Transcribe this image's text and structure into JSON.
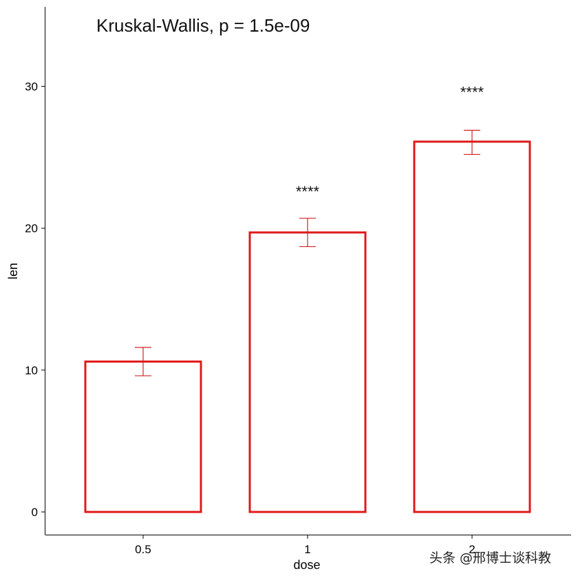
{
  "chart_data": {
    "type": "bar",
    "categories": [
      "0.5",
      "1",
      "2"
    ],
    "values": [
      10.6,
      19.7,
      26.1
    ],
    "error_low": [
      9.6,
      18.7,
      25.2
    ],
    "error_high": [
      11.6,
      20.7,
      26.9
    ],
    "significance": [
      "",
      "****",
      "****"
    ],
    "significance_y": [
      null,
      22.6,
      29.6
    ],
    "annotation": "Kruskal-Wallis, p = 1.5e-09",
    "xlabel": "dose",
    "ylabel": "len",
    "yticks": [
      0,
      10,
      20,
      30
    ],
    "ylim": [
      -1.6,
      35.6
    ],
    "grid": false,
    "bar_color": "#e0191a",
    "error_color": "#d42020"
  },
  "watermark": "头条 @邢博士谈科教"
}
